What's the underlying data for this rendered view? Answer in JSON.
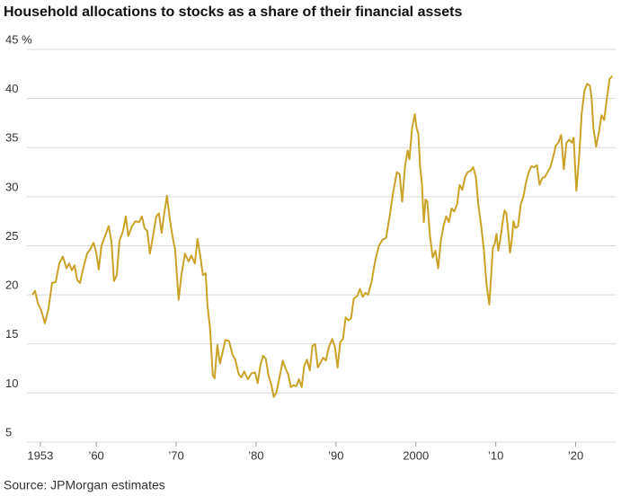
{
  "chart_data": {
    "type": "line",
    "title": "Household allocations to stocks as a share of their financial assets",
    "source": "Source: JPMorgan estimates",
    "xlim": [
      1952,
      2025
    ],
    "ylim": [
      5,
      45
    ],
    "xticks": [
      1953,
      {
        "value": 1960,
        "label": "’60"
      },
      {
        "value": 1970,
        "label": "’70"
      },
      {
        "value": 1980,
        "label": "’80"
      },
      {
        "value": 1990,
        "label": "’90"
      },
      2000,
      {
        "value": 2010,
        "label": "’10"
      },
      {
        "value": 2020,
        "label": "’20"
      }
    ],
    "yticks": [
      5,
      10,
      15,
      20,
      25,
      30,
      35,
      40,
      {
        "value": 45,
        "label": "45 %"
      }
    ],
    "grid": true,
    "x": [
      1952.0,
      1952.34,
      1952.67,
      1953.12,
      1953.57,
      1954.02,
      1954.47,
      1954.92,
      1955.37,
      1955.82,
      1956.27,
      1956.61,
      1956.94,
      1957.28,
      1957.62,
      1957.96,
      1958.4,
      1958.85,
      1959.3,
      1959.64,
      1959.98,
      1960.31,
      1960.65,
      1961.1,
      1961.55,
      1961.89,
      1962.22,
      1962.56,
      1962.9,
      1963.35,
      1963.69,
      1964.02,
      1964.47,
      1964.92,
      1965.37,
      1965.71,
      1966.04,
      1966.38,
      1966.72,
      1967.06,
      1967.51,
      1967.84,
      1968.18,
      1968.52,
      1968.85,
      1969.19,
      1969.53,
      1969.87,
      1970.31,
      1970.65,
      1971.1,
      1971.55,
      1971.89,
      1972.34,
      1972.67,
      1973.01,
      1973.35,
      1973.69,
      1973.91,
      1974.25,
      1974.58,
      1974.81,
      1975.15,
      1975.48,
      1975.82,
      1976.16,
      1976.61,
      1977.06,
      1977.39,
      1977.84,
      1978.18,
      1978.52,
      1978.97,
      1979.42,
      1979.87,
      1980.2,
      1980.54,
      1980.88,
      1981.21,
      1981.55,
      1981.89,
      1982.22,
      1982.56,
      1983.01,
      1983.35,
      1983.69,
      1984.02,
      1984.36,
      1984.7,
      1985.03,
      1985.37,
      1985.71,
      1986.04,
      1986.38,
      1986.72,
      1987.06,
      1987.39,
      1987.73,
      1988.07,
      1988.4,
      1988.74,
      1989.08,
      1989.53,
      1989.87,
      1990.2,
      1990.54,
      1990.88,
      1991.21,
      1991.55,
      1991.89,
      1992.22,
      1992.67,
      1993.01,
      1993.35,
      1993.69,
      1994.02,
      1994.47,
      1994.92,
      1995.37,
      1995.82,
      1996.27,
      1996.72,
      1997.17,
      1997.62,
      1997.96,
      1998.29,
      1998.63,
      1998.97,
      1999.19,
      1999.53,
      1999.87,
      2000.09,
      2000.31,
      2000.54,
      2000.76,
      2000.99,
      2001.21,
      2001.43,
      2001.77,
      2002.11,
      2002.45,
      2002.79,
      2003.12,
      2003.46,
      2003.8,
      2004.13,
      2004.47,
      2004.81,
      2005.15,
      2005.48,
      2005.82,
      2006.16,
      2006.49,
      2006.83,
      2007.17,
      2007.51,
      2007.84,
      2008.18,
      2008.52,
      2008.85,
      2009.19,
      2009.42,
      2009.64,
      2009.87,
      2010.09,
      2010.31,
      2010.54,
      2010.88,
      2011.1,
      2011.33,
      2011.55,
      2011.78,
      2012.0,
      2012.22,
      2012.45,
      2012.79,
      2013.12,
      2013.46,
      2013.8,
      2014.13,
      2014.47,
      2014.81,
      2015.15,
      2015.48,
      2015.82,
      2016.16,
      2016.49,
      2016.83,
      2017.17,
      2017.51,
      2017.84,
      2018.18,
      2018.52,
      2018.85,
      2019.19,
      2019.53,
      2019.75,
      2020.09,
      2020.43,
      2020.76,
      2021.1,
      2021.44,
      2021.78,
      2022.0,
      2022.22,
      2022.56,
      2022.9,
      2023.24,
      2023.57,
      2023.91,
      2024.25,
      2024.58
    ],
    "series": [
      {
        "color": "#c9a327",
        "values": [
          20.0,
          20.4,
          19.2,
          18.4,
          17.1,
          18.6,
          21.2,
          21.3,
          23.2,
          23.9,
          22.7,
          23.2,
          22.5,
          23.0,
          21.5,
          21.2,
          22.8,
          24.2,
          24.7,
          25.3,
          24.4,
          22.6,
          25.0,
          26.0,
          27.0,
          25.5,
          21.4,
          22.0,
          25.5,
          26.5,
          28.0,
          26.0,
          27.0,
          27.5,
          27.4,
          28.0,
          26.8,
          26.5,
          24.2,
          25.8,
          28.0,
          28.3,
          26.3,
          28.4,
          30.1,
          27.8,
          26.0,
          24.6,
          19.5,
          22.0,
          24.2,
          23.4,
          24.0,
          23.2,
          25.7,
          24.0,
          22.0,
          22.2,
          19.0,
          16.5,
          11.8,
          11.5,
          14.9,
          13.0,
          14.2,
          15.4,
          15.3,
          13.9,
          13.4,
          11.9,
          11.6,
          12.2,
          11.4,
          12.0,
          12.1,
          11.0,
          12.8,
          13.8,
          13.5,
          11.8,
          10.9,
          9.6,
          10.1,
          11.9,
          13.3,
          12.5,
          11.9,
          10.6,
          10.8,
          10.7,
          11.4,
          10.6,
          12.8,
          13.4,
          12.3,
          14.8,
          15.0,
          12.6,
          13.1,
          13.6,
          13.3,
          14.6,
          15.5,
          14.7,
          12.6,
          15.2,
          15.5,
          17.7,
          17.4,
          17.6,
          19.6,
          19.9,
          20.6,
          19.8,
          20.2,
          20.0,
          21.4,
          23.5,
          25.0,
          25.6,
          25.8,
          28.0,
          30.5,
          32.5,
          32.3,
          29.5,
          33.0,
          34.7,
          33.8,
          37.0,
          38.4,
          37.0,
          36.4,
          33.0,
          31.3,
          27.4,
          29.7,
          29.5,
          26.0,
          23.8,
          24.5,
          22.7,
          25.5,
          27.0,
          28.0,
          27.4,
          28.8,
          28.5,
          29.2,
          31.2,
          30.7,
          32.0,
          32.5,
          32.6,
          33.0,
          32.0,
          29.0,
          27.0,
          24.5,
          21.0,
          19.0,
          22.0,
          24.8,
          25.2,
          26.2,
          24.5,
          25.5,
          27.5,
          28.6,
          28.3,
          26.5,
          24.3,
          25.5,
          27.5,
          26.8,
          27.0,
          29.2,
          30.0,
          31.5,
          32.5,
          33.1,
          33.0,
          33.2,
          31.2,
          31.9,
          32.0,
          32.5,
          33.0,
          34.0,
          35.2,
          35.5,
          36.3,
          32.8,
          35.5,
          35.8,
          35.5,
          36.0,
          30.6,
          34.0,
          38.5,
          40.8,
          41.5,
          41.3,
          40.0,
          37.0,
          35.1,
          36.5,
          38.3,
          37.8,
          40.0,
          42.0,
          42.3
        ]
      }
    ]
  }
}
